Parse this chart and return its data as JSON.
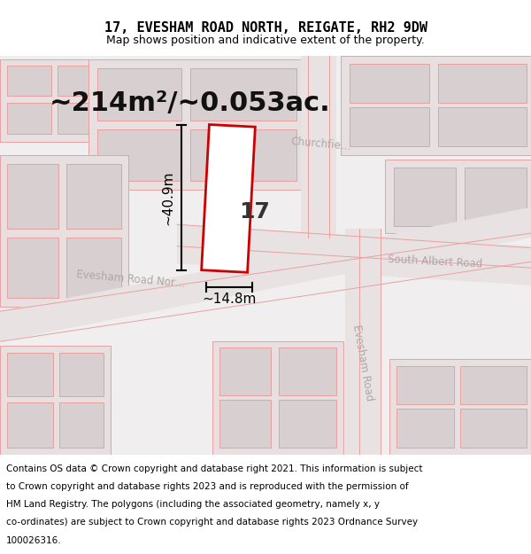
{
  "title": "17, EVESHAM ROAD NORTH, REIGATE, RH2 9DW",
  "subtitle": "Map shows position and indicative extent of the property.",
  "area_text": "~214m²/~0.053ac.",
  "dim_width": "~14.8m",
  "dim_height": "~40.9m",
  "property_number": "17",
  "map_bg_color": "#f0eeee",
  "road_fill_color": "#e8e2e2",
  "bf_light": "#e8e0e0",
  "bf_gray": "#d8d0d0",
  "road_line_color": "#e8a0a0",
  "property_line_color": "#cc0000",
  "property_fill_color": "#ffffff",
  "dim_line_color": "#000000",
  "road_text_color": "#b0a8a8",
  "title_color": "#000000",
  "subtitle_color": "#000000",
  "footer_color": "#000000",
  "title_fontsize": 11,
  "subtitle_fontsize": 9,
  "area_fontsize": 22,
  "road_label_fontsize": 8.5,
  "footer_fontsize": 7.5,
  "footer_lines": [
    "Contains OS data © Crown copyright and database right 2021. This information is subject",
    "to Crown copyright and database rights 2023 and is reproduced with the permission of",
    "HM Land Registry. The polygons (including the associated geometry, namely x, y",
    "co-ordinates) are subject to Crown copyright and database rights 2023 Ordnance Survey",
    "100026316."
  ]
}
